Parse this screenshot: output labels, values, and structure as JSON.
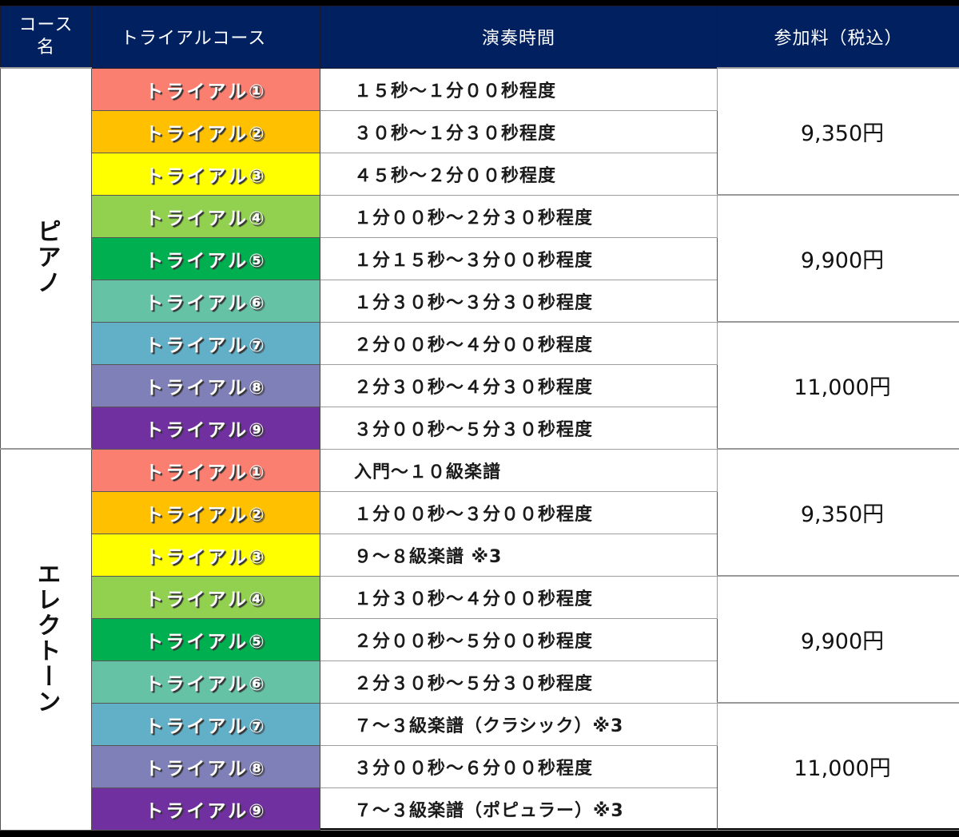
{
  "header": {
    "col_course_name": "コース名",
    "col_course_name_line1": "コース",
    "col_course_name_line2": "名",
    "col_trial_course": "トライアルコース",
    "col_performance_time": "演奏時間",
    "col_fee": "参加料（税込）"
  },
  "colors": {
    "header_bg": "#002060",
    "trial1": "#FA7F70",
    "trial2": "#FFC000",
    "trial3": "#FFFF00",
    "trial4": "#92D050",
    "trial5": "#00B050",
    "trial6": "#66C2A5",
    "trial7": "#62AFC8",
    "trial8": "#8080B8",
    "trial9": "#7030A0"
  },
  "sections": [
    {
      "category": "ピアノ",
      "rows": [
        {
          "trial": "トライアル①",
          "time": "１５秒～１分００秒程度"
        },
        {
          "trial": "トライアル②",
          "time": "３０秒～１分３０秒程度"
        },
        {
          "trial": "トライアル③",
          "time": "４５秒～２分００秒程度"
        },
        {
          "trial": "トライアル④",
          "time": "１分００秒～２分３０秒程度"
        },
        {
          "trial": "トライアル⑤",
          "time": "１分１５秒～３分００秒程度"
        },
        {
          "trial": "トライアル⑥",
          "time": "１分３０秒～３分３０秒程度"
        },
        {
          "trial": "トライアル⑦",
          "time": "２分００秒～４分００秒程度"
        },
        {
          "trial": "トライアル⑧",
          "time": "２分３０秒～４分３０秒程度"
        },
        {
          "trial": "トライアル⑨",
          "time": "３分００秒～５分３０秒程度"
        }
      ],
      "prices": [
        "9,350円",
        "9,900円",
        "11,000円"
      ]
    },
    {
      "category": "エレクトーン",
      "rows": [
        {
          "trial": "トライアル①",
          "time": "入門～１０級楽譜"
        },
        {
          "trial": "トライアル②",
          "time": "１分００秒～３分００秒程度"
        },
        {
          "trial": "トライアル③",
          "time": "９～８級楽譜 ※3"
        },
        {
          "trial": "トライアル④",
          "time": "１分３０秒～４分００秒程度"
        },
        {
          "trial": "トライアル⑤",
          "time": "２分００秒～５分００秒程度"
        },
        {
          "trial": "トライアル⑥",
          "time": "２分３０秒～５分３０秒程度"
        },
        {
          "trial": "トライアル⑦",
          "time": "７～３級楽譜（クラシック）※3"
        },
        {
          "trial": "トライアル⑧",
          "time": "３分００秒～６分００秒程度"
        },
        {
          "trial": "トライアル⑨",
          "time": "７～３級楽譜（ポピュラー）※3"
        }
      ],
      "prices": [
        "9,350円",
        "9,900円",
        "11,000円"
      ]
    }
  ]
}
